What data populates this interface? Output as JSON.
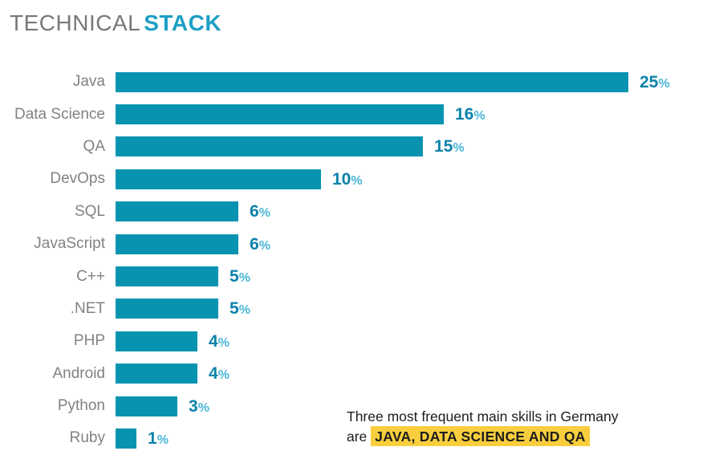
{
  "title": {
    "normal": "TECHNICAL",
    "accent": "STACK"
  },
  "chart_data": {
    "type": "bar",
    "orientation": "horizontal",
    "title": "TECHNICAL STACK",
    "categories": [
      "Java",
      "Data Science",
      "QA",
      "DevOps",
      "SQL",
      "JavaScript",
      "C++",
      ".NET",
      "PHP",
      "Android",
      "Python",
      "Ruby"
    ],
    "values": [
      25,
      16,
      15,
      10,
      6,
      6,
      5,
      5,
      4,
      4,
      3,
      1
    ],
    "unit": "%",
    "xlim": [
      0,
      25
    ],
    "xlabel": "",
    "ylabel": "",
    "grid": false,
    "legend": false,
    "annotation": "Three most frequent main skills in Germany are JAVA, DATA SCIENCE AND QA"
  },
  "annotation": {
    "line1": "Three most frequent main skills in Germany",
    "line2_prefix": "are",
    "line2_highlight": "JAVA, DATA SCIENCE AND QA"
  },
  "colors": {
    "bar": "#0894b1",
    "title_gray": "#77787b",
    "title_accent": "#1e9fc5",
    "category_label": "#808285",
    "value_number": "#0c82a9",
    "value_percent": "#4ab6d8",
    "highlight_bg": "#f9ce3d",
    "annotation_text": "#1d1d1b"
  }
}
